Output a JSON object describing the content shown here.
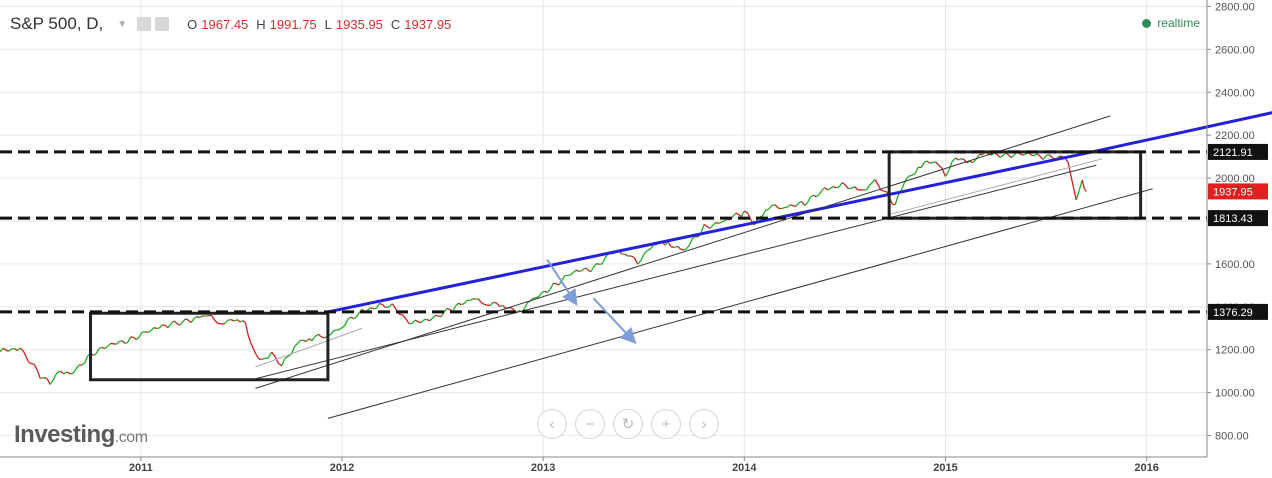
{
  "header": {
    "symbol": "S&P 500, D,",
    "open_label": "O",
    "open": "1967.45",
    "high_label": "H",
    "high": "1991.75",
    "low_label": "L",
    "low": "1935.95",
    "close_label": "C",
    "close": "1937.95",
    "realtime": "realtime"
  },
  "branding": {
    "logo_main": "Investing",
    "logo_domain": ".com"
  },
  "zoom_controls": [
    {
      "name": "scroll-left-button",
      "icon": "chevron-left-icon",
      "glyph": "‹"
    },
    {
      "name": "zoom-out-button",
      "icon": "minus-icon",
      "glyph": "−"
    },
    {
      "name": "reset-button",
      "icon": "reset-icon",
      "glyph": "↻"
    },
    {
      "name": "zoom-in-button",
      "icon": "plus-icon",
      "glyph": "+"
    },
    {
      "name": "scroll-right-button",
      "icon": "chevron-right-icon",
      "glyph": "›"
    }
  ],
  "colors": {
    "up": "#22aa22",
    "down": "#d02020",
    "trend": "#2222dd",
    "price_marker": "#e02020",
    "question_circle": "#c8c878"
  },
  "chart_data": {
    "type": "line",
    "title": "S&P 500, D,",
    "x_ticks": [
      "2011",
      "2012",
      "2013",
      "2014",
      "2015",
      "2016"
    ],
    "x_range": [
      2010.3,
      2016.3
    ],
    "y_ticks": [
      800,
      1000,
      1200,
      1400,
      1600,
      1800,
      2000,
      2200,
      2400,
      2600,
      2800
    ],
    "y_tick_labels": [
      "800.00",
      "1000.00",
      "1200.00",
      "1400.00",
      "1600.00",
      "1800.00",
      "2000.00",
      "2200.00",
      "2400.00",
      "2600.00",
      "2800.00"
    ],
    "ylim": [
      700,
      2830
    ],
    "grid": true,
    "series": [
      {
        "x": [
          2010.3,
          2010.4,
          2010.5,
          2010.55,
          2010.6,
          2010.65,
          2010.75,
          2010.85,
          2010.95,
          2011.05,
          2011.15,
          2011.25,
          2011.32,
          2011.4,
          2011.48,
          2011.52,
          2011.56,
          2011.6,
          2011.65,
          2011.7,
          2011.78,
          2011.85,
          2011.93,
          2012.0,
          2012.1,
          2012.2,
          2012.25,
          2012.3,
          2012.35,
          2012.45,
          2012.55,
          2012.65,
          2012.72,
          2012.8,
          2012.88,
          2012.95,
          2013.05,
          2013.15,
          2013.25,
          2013.35,
          2013.42,
          2013.47,
          2013.55,
          2013.62,
          2013.7,
          2013.8,
          2013.9,
          2014.0,
          2014.05,
          2014.12,
          2014.2,
          2014.3,
          2014.4,
          2014.5,
          2014.58,
          2014.65,
          2014.75,
          2014.8,
          2014.88,
          2014.95,
          2015.0,
          2015.05,
          2015.12,
          2015.2,
          2015.3,
          2015.4,
          2015.5,
          2015.55,
          2015.6,
          2015.62,
          2015.65,
          2015.68,
          2015.7
        ],
        "values": [
          1190,
          1210,
          1080,
          1040,
          1110,
          1080,
          1180,
          1220,
          1250,
          1290,
          1320,
          1340,
          1360,
          1330,
          1340,
          1320,
          1200,
          1140,
          1190,
          1120,
          1240,
          1250,
          1270,
          1310,
          1380,
          1410,
          1400,
          1360,
          1320,
          1350,
          1390,
          1440,
          1420,
          1400,
          1380,
          1430,
          1500,
          1560,
          1580,
          1660,
          1640,
          1610,
          1690,
          1700,
          1660,
          1770,
          1800,
          1840,
          1790,
          1860,
          1870,
          1880,
          1950,
          1970,
          1930,
          1990,
          1870,
          1990,
          2060,
          2080,
          2020,
          2090,
          2080,
          2110,
          2110,
          2110,
          2100,
          2100,
          2090,
          2040,
          1900,
          1990,
          1938
        ]
      }
    ],
    "levels": [
      {
        "value": 2121.91,
        "label": "2121.91"
      },
      {
        "value": 1813.43,
        "label": "1813.43"
      },
      {
        "value": 1376.29,
        "label": "1376.29"
      }
    ],
    "last_price": {
      "value": 1937.95,
      "label": "1937.95"
    },
    "boxes": [
      {
        "x0": 2010.75,
        "x1": 2011.93,
        "y0": 1060,
        "y1": 1370
      },
      {
        "x0": 2014.72,
        "x1": 2015.97,
        "y0": 1813,
        "y1": 2122
      }
    ],
    "trendlines": [
      {
        "kind": "trend",
        "x0": 2011.93,
        "y0": 1376,
        "x1": 2015.72,
        "y1": 2120
      },
      {
        "kind": "trend",
        "x0": 2015.72,
        "y0": 2120,
        "x1": 2017.75,
        "y1": 2535
      },
      {
        "kind": "channel",
        "x0": 2011.57,
        "y0": 1020,
        "x1": 2015.82,
        "y1": 2290
      },
      {
        "kind": "channel",
        "x0": 2011.55,
        "y0": 1060,
        "x1": 2015.75,
        "y1": 2060
      },
      {
        "kind": "channel",
        "x0": 2011.93,
        "y0": 880,
        "x1": 2016.03,
        "y1": 1950
      },
      {
        "kind": "channel-light",
        "x0": 2011.57,
        "y0": 1120,
        "x1": 2012.1,
        "y1": 1300
      },
      {
        "kind": "channel-light",
        "x0": 2014.72,
        "y0": 1830,
        "x1": 2015.78,
        "y1": 2090
      }
    ],
    "arrows": [
      {
        "x0": 2013.02,
        "y0": 1620,
        "x1": 2013.16,
        "y1": 1420
      },
      {
        "x0": 2013.25,
        "y0": 1440,
        "x1": 2013.45,
        "y1": 1240
      }
    ],
    "annotations": [
      {
        "text": "?",
        "x": 2017.75,
        "y": 2535
      }
    ]
  }
}
